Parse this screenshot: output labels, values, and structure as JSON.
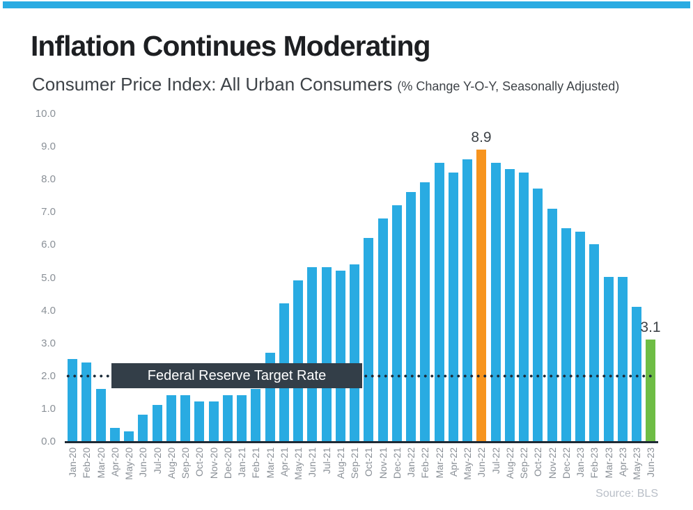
{
  "page": {
    "title": "Inflation Continues Moderating",
    "subtitle": "Consumer Price Index: All Urban Consumers",
    "subtitle_note": "(% Change Y-O-Y, Seasonally Adjusted)",
    "source": "Source: BLS"
  },
  "colors": {
    "accent_strip": "#29ABE2",
    "bar_blue": "#29ABE2",
    "bar_orange": "#F7941E",
    "bar_green": "#6EBD45",
    "annotation_box_bg": "#333E48",
    "annotation_text": "#FFFFFF",
    "axis_line": "#1F2A35",
    "dot_color": "#1C2B39",
    "axis_label": "#8A9097",
    "value_label": "#3E4348",
    "source_text": "#B8BEC7"
  },
  "annotation": {
    "target_rate_label": "Federal Reserve Target Rate",
    "target_rate_value": 2.0
  },
  "chart_data": {
    "type": "bar",
    "title": "Inflation Continues Moderating",
    "subtitle": "Consumer Price Index: All Urban Consumers (% Change Y-O-Y, Seasonally Adjusted)",
    "xlabel": "",
    "ylabel": "",
    "ylim": [
      0,
      10
    ],
    "yticks": [
      "0.0",
      "1.0",
      "2.0",
      "3.0",
      "4.0",
      "5.0",
      "6.0",
      "7.0",
      "8.0",
      "9.0",
      "10.0"
    ],
    "grid": false,
    "legend": false,
    "reference_line": {
      "value": 2.0,
      "style": "dotted",
      "label": "Federal Reserve Target Rate"
    },
    "categories": [
      "Jan-20",
      "Feb-20",
      "Mar-20",
      "Apr-20",
      "May-20",
      "Jun-20",
      "Jul-20",
      "Aug-20",
      "Sep-20",
      "Oct-20",
      "Nov-20",
      "Dec-20",
      "Jan-21",
      "Feb-21",
      "Mar-21",
      "Apr-21",
      "May-21",
      "Jun-21",
      "Jul-21",
      "Aug-21",
      "Sep-21",
      "Oct-21",
      "Nov-21",
      "Dec-21",
      "Jan-22",
      "Feb-22",
      "Mar-22",
      "Apr-22",
      "May-22",
      "Jun-22",
      "Jul-22",
      "Aug-22",
      "Sep-22",
      "Oct-22",
      "Nov-22",
      "Dec-22",
      "Jan-23",
      "Feb-23",
      "Mar-23",
      "Apr-23",
      "May-23",
      "Jun-23"
    ],
    "values": [
      2.5,
      2.4,
      1.6,
      0.4,
      0.3,
      0.8,
      1.1,
      1.4,
      1.4,
      1.2,
      1.2,
      1.4,
      1.4,
      1.6,
      2.7,
      4.2,
      4.9,
      5.3,
      5.3,
      5.2,
      5.4,
      6.2,
      6.8,
      7.2,
      7.6,
      7.9,
      8.5,
      8.2,
      8.6,
      8.9,
      8.5,
      8.3,
      8.2,
      7.7,
      7.1,
      6.5,
      6.4,
      6.0,
      5.0,
      5.0,
      4.1,
      3.1
    ],
    "highlights": [
      {
        "index": 29,
        "category": "Jun-22",
        "value": 8.9,
        "color": "#F7941E",
        "data_label": "8.9"
      },
      {
        "index": 41,
        "category": "Jun-23",
        "value": 3.1,
        "color": "#6EBD45",
        "data_label": "3.1"
      }
    ]
  }
}
